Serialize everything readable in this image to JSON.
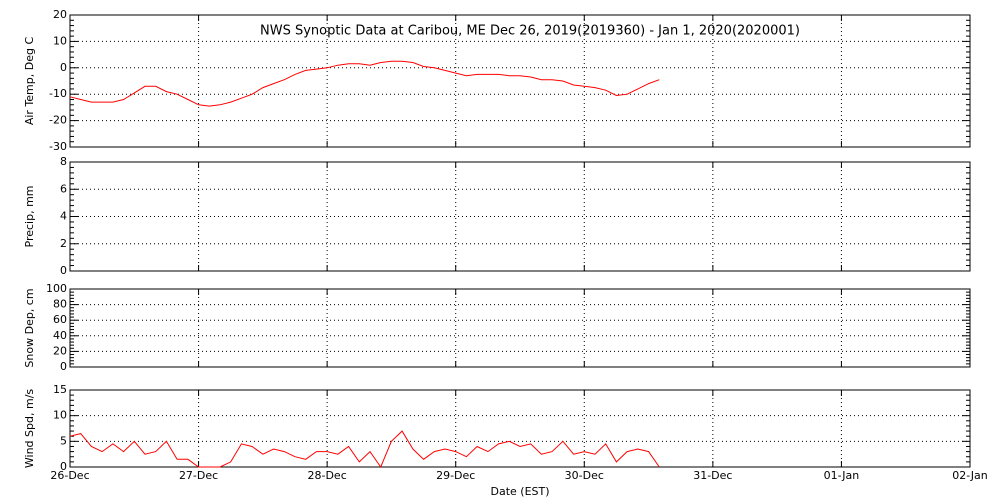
{
  "chart_data": [
    {
      "type": "line",
      "title": "NWS Synoptic Data at Caribou, ME   Dec 26, 2019(2019360) - Jan  1, 2020(2020001)",
      "ylabel": "Air Temp, Deg C",
      "ylim": [
        -30,
        20
      ],
      "yticks": [
        -30,
        -20,
        -10,
        0,
        10,
        20
      ],
      "grid": true,
      "x": [
        "26-Dec 00:00",
        "26-Dec 02:00",
        "26-Dec 04:00",
        "26-Dec 06:00",
        "26-Dec 08:00",
        "26-Dec 10:00",
        "26-Dec 12:00",
        "26-Dec 14:00",
        "26-Dec 16:00",
        "26-Dec 18:00",
        "26-Dec 20:00",
        "26-Dec 22:00",
        "27-Dec 00:00",
        "27-Dec 02:00",
        "27-Dec 04:00",
        "27-Dec 06:00",
        "27-Dec 08:00",
        "27-Dec 10:00",
        "27-Dec 12:00",
        "27-Dec 14:00",
        "27-Dec 16:00",
        "27-Dec 18:00",
        "27-Dec 20:00",
        "27-Dec 22:00",
        "28-Dec 00:00",
        "28-Dec 02:00",
        "28-Dec 04:00",
        "28-Dec 06:00",
        "28-Dec 08:00",
        "28-Dec 10:00",
        "28-Dec 12:00",
        "28-Dec 14:00",
        "28-Dec 16:00",
        "28-Dec 18:00",
        "28-Dec 20:00",
        "28-Dec 22:00",
        "29-Dec 00:00",
        "29-Dec 02:00",
        "29-Dec 04:00",
        "29-Dec 06:00",
        "29-Dec 08:00",
        "29-Dec 10:00",
        "29-Dec 12:00",
        "29-Dec 14:00",
        "29-Dec 16:00",
        "29-Dec 18:00",
        "29-Dec 20:00",
        "29-Dec 22:00",
        "30-Dec 00:00",
        "30-Dec 02:00",
        "30-Dec 04:00",
        "30-Dec 06:00",
        "30-Dec 08:00",
        "30-Dec 10:00",
        "30-Dec 12:00",
        "30-Dec 14:00"
      ],
      "series": [
        {
          "color": "#ff0000",
          "values": [
            -11,
            -12,
            -13,
            -13,
            -13,
            -12,
            -9.5,
            -7,
            -7,
            -9,
            -10,
            -12,
            -14,
            -14.5,
            -14,
            -13,
            -11.5,
            -10,
            -7.5,
            -6,
            -4.5,
            -2.5,
            -1,
            -0.5,
            0,
            1,
            1.5,
            1.5,
            1,
            2,
            2.5,
            2.5,
            2,
            0.5,
            0,
            -1,
            -2,
            -3,
            -2.5,
            -2.5,
            -2.5,
            -3,
            -3,
            -3.5,
            -4.5,
            -4.5,
            -5,
            -6.5,
            -7,
            -7.5,
            -8.5,
            -10.5,
            -10,
            -8,
            -6,
            -4.5
          ]
        }
      ]
    },
    {
      "type": "line",
      "ylabel": "Precip, mm",
      "ylim": [
        0,
        8
      ],
      "yticks": [
        0,
        2,
        4,
        6,
        8
      ],
      "grid": true
    },
    {
      "type": "line",
      "ylabel": "Snow Dep, cm",
      "ylim": [
        0,
        100
      ],
      "yticks": [
        0,
        20,
        40,
        60,
        80,
        100
      ],
      "grid": true
    },
    {
      "type": "line",
      "ylabel": "Wind Spd, m/s",
      "xlabel": "Date (EST)",
      "ylim": [
        0,
        15
      ],
      "yticks": [
        0,
        5,
        10,
        15
      ],
      "grid": true,
      "xticks": [
        "26-Dec",
        "27-Dec",
        "28-Dec",
        "29-Dec",
        "30-Dec",
        "31-Dec",
        "01-Jan",
        "02-Jan"
      ],
      "x": [
        "26-Dec 00:00",
        "26-Dec 02:00",
        "26-Dec 04:00",
        "26-Dec 06:00",
        "26-Dec 08:00",
        "26-Dec 10:00",
        "26-Dec 12:00",
        "26-Dec 14:00",
        "26-Dec 16:00",
        "26-Dec 18:00",
        "26-Dec 20:00",
        "26-Dec 22:00",
        "27-Dec 00:00",
        "27-Dec 02:00",
        "27-Dec 04:00",
        "27-Dec 06:00",
        "27-Dec 08:00",
        "27-Dec 10:00",
        "27-Dec 12:00",
        "27-Dec 14:00",
        "27-Dec 16:00",
        "27-Dec 18:00",
        "27-Dec 20:00",
        "27-Dec 22:00",
        "28-Dec 00:00",
        "28-Dec 02:00",
        "28-Dec 04:00",
        "28-Dec 06:00",
        "28-Dec 08:00",
        "28-Dec 10:00",
        "28-Dec 12:00",
        "28-Dec 14:00",
        "28-Dec 16:00",
        "28-Dec 18:00",
        "28-Dec 20:00",
        "28-Dec 22:00",
        "29-Dec 00:00",
        "29-Dec 02:00",
        "29-Dec 04:00",
        "29-Dec 06:00",
        "29-Dec 08:00",
        "29-Dec 10:00",
        "29-Dec 12:00",
        "29-Dec 14:00",
        "29-Dec 16:00",
        "29-Dec 18:00",
        "29-Dec 20:00",
        "29-Dec 22:00",
        "30-Dec 00:00",
        "30-Dec 02:00",
        "30-Dec 04:00",
        "30-Dec 06:00",
        "30-Dec 08:00",
        "30-Dec 10:00",
        "30-Dec 12:00",
        "30-Dec 14:00"
      ],
      "series": [
        {
          "color": "#ff0000",
          "values": [
            6,
            6.5,
            4,
            3,
            4.5,
            3,
            5,
            2.5,
            3,
            5,
            1.5,
            1.5,
            0,
            0,
            0,
            1,
            4.5,
            4,
            2.5,
            3.5,
            3,
            2,
            1.5,
            3,
            3,
            2.5,
            4,
            1,
            3,
            0,
            5,
            7,
            3.5,
            1.5,
            3,
            3.5,
            3,
            2,
            4,
            3,
            4.5,
            5,
            4,
            4.5,
            2.5,
            3,
            5,
            2.5,
            3,
            2.5,
            4.5,
            1,
            3,
            3.5,
            3,
            0
          ]
        }
      ]
    }
  ]
}
